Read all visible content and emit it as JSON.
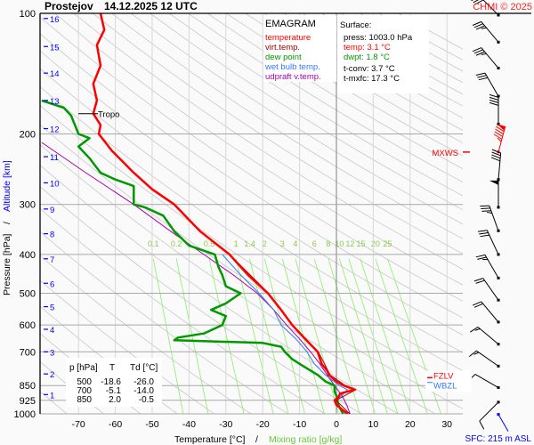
{
  "header": {
    "station": "Prostejov",
    "datetime": "14.12.2025 12 UTC",
    "copyright": "CHMI © 2025"
  },
  "legend": {
    "title": "EMAGRAM",
    "items": [
      {
        "label": "temperature",
        "color": "#ff0000"
      },
      {
        "label": "virt.temp.",
        "color": "#a00000"
      },
      {
        "label": "dew point",
        "color": "#009900"
      },
      {
        "label": "wet bulb temp.",
        "color": "#3377ff"
      },
      {
        "label": "udpraft v.temp.",
        "color": "#aa00aa"
      }
    ]
  },
  "surface": {
    "title": "Surface:",
    "press": "press: 1003.0 hPa",
    "temp": "temp: 3.1 °C",
    "dwpt": "dwpt: 1.8 °C",
    "tconv": "t-conv: 3.7 °C",
    "tmxfc": "t-mxfc: 17.3 °C"
  },
  "table": {
    "headers": [
      "p [hPa]",
      "T",
      "Td [°C]"
    ],
    "rows": [
      [
        "500",
        "-18.6",
        "-26.0"
      ],
      [
        "700",
        "-5.1",
        "-14.0"
      ],
      [
        "850",
        "2.0",
        "-0.5"
      ]
    ]
  },
  "annotations": {
    "tropo": "Tropo",
    "tropo_p": 178,
    "mxws": "MXWS",
    "mxws_p": 222,
    "fzlv": "FZLV",
    "fzlv_p": 812,
    "wbzl": "WBZL",
    "wbzl_p": 835,
    "sfc": "SFC: 215 m ASL"
  },
  "chart_data": {
    "type": "line",
    "title": "EMAGRAM",
    "xlabel": "Temperature [°C]",
    "xlabel2": "Mixing ratio [g/kg]",
    "xlabel_sep": "/",
    "ylabel": "Pressure [hPa]",
    "ylabel2": "Altitude [km]",
    "ylabel_sep": "/",
    "xlim": [
      -80,
      33
    ],
    "ylim": [
      1000,
      100
    ],
    "y_scale": "log",
    "x_ticks": [
      -70,
      -60,
      -50,
      -40,
      -30,
      -20,
      -10,
      0,
      10,
      20,
      30
    ],
    "p_ticks": [
      100,
      200,
      300,
      400,
      500,
      600,
      700,
      850,
      925,
      1000
    ],
    "altitude_ticks_km": [
      {
        "km": "1",
        "p": 895
      },
      {
        "km": "2",
        "p": 795
      },
      {
        "km": "3",
        "p": 700
      },
      {
        "km": "4",
        "p": 615
      },
      {
        "km": "5",
        "p": 540
      },
      {
        "km": "6",
        "p": 472
      },
      {
        "km": "7",
        "p": 410
      },
      {
        "km": "8",
        "p": 355
      },
      {
        "km": "9",
        "p": 308
      },
      {
        "km": "10",
        "p": 265
      },
      {
        "km": "11",
        "p": 228
      },
      {
        "km": "12",
        "p": 194
      },
      {
        "km": "13",
        "p": 165
      },
      {
        "km": "14",
        "p": 141
      },
      {
        "km": "15",
        "p": 121
      },
      {
        "km": "16",
        "p": 103
      }
    ],
    "mixing_ratio_lines": [
      "0.1",
      "0.2",
      "0.5",
      "1",
      "1.4",
      "2",
      "3",
      "4",
      "6",
      "8",
      "10",
      "12",
      "15",
      "20",
      "25"
    ],
    "mixing_ratio_label_p": 410,
    "colors": {
      "grid": "#b0b0b0",
      "adiabat": "#c8c8c8",
      "mixing": "#88ee66",
      "altitude": "#0000ff",
      "mixing_label": "#88cc44"
    },
    "series": [
      {
        "name": "temperature",
        "color": "#ff0000",
        "points": [
          [
            100,
            -64
          ],
          [
            110,
            -63
          ],
          [
            120,
            -65
          ],
          [
            135,
            -64
          ],
          [
            150,
            -66
          ],
          [
            165,
            -65
          ],
          [
            178,
            -66
          ],
          [
            190,
            -64
          ],
          [
            200,
            -64.5
          ],
          [
            220,
            -61
          ],
          [
            250,
            -55
          ],
          [
            275,
            -50
          ],
          [
            300,
            -44
          ],
          [
            350,
            -37
          ],
          [
            400,
            -29
          ],
          [
            450,
            -24
          ],
          [
            500,
            -18.6
          ],
          [
            550,
            -15
          ],
          [
            600,
            -12
          ],
          [
            650,
            -8.5
          ],
          [
            700,
            -5.1
          ],
          [
            750,
            -4
          ],
          [
            780,
            -2.5
          ],
          [
            800,
            -2
          ],
          [
            830,
            0
          ],
          [
            850,
            2.0
          ],
          [
            870,
            5
          ],
          [
            890,
            1
          ],
          [
            910,
            0.5
          ],
          [
            925,
            -0.5
          ],
          [
            950,
            0
          ],
          [
            975,
            1.5
          ],
          [
            1000,
            3.1
          ]
        ]
      },
      {
        "name": "virt.temp.",
        "color": "#a00000",
        "points": [
          [
            400,
            -29
          ],
          [
            500,
            -18.4
          ],
          [
            600,
            -11.8
          ],
          [
            700,
            -4.9
          ],
          [
            800,
            -1.7
          ],
          [
            850,
            2.4
          ],
          [
            870,
            5.3
          ],
          [
            925,
            -0.1
          ],
          [
            1000,
            3.6
          ]
        ]
      },
      {
        "name": "dew point",
        "color": "#009900",
        "points": [
          [
            165,
            -80
          ],
          [
            172,
            -74
          ],
          [
            180,
            -72
          ],
          [
            200,
            -70
          ],
          [
            205,
            -67
          ],
          [
            215,
            -70
          ],
          [
            230,
            -67
          ],
          [
            250,
            -64
          ],
          [
            260,
            -60
          ],
          [
            270,
            -55
          ],
          [
            300,
            -55
          ],
          [
            305,
            -52
          ],
          [
            320,
            -47
          ],
          [
            350,
            -44
          ],
          [
            380,
            -40
          ],
          [
            400,
            -33
          ],
          [
            430,
            -32
          ],
          [
            450,
            -31
          ],
          [
            480,
            -30
          ],
          [
            500,
            -26
          ],
          [
            530,
            -30
          ],
          [
            550,
            -34
          ],
          [
            570,
            -30
          ],
          [
            600,
            -31
          ],
          [
            630,
            -36
          ],
          [
            645,
            -43
          ],
          [
            655,
            -44
          ],
          [
            665,
            -20
          ],
          [
            680,
            -15
          ],
          [
            700,
            -14
          ],
          [
            730,
            -12
          ],
          [
            750,
            -10
          ],
          [
            780,
            -7
          ],
          [
            800,
            -5
          ],
          [
            830,
            -3
          ],
          [
            850,
            -0.5
          ],
          [
            880,
            -0.5
          ],
          [
            900,
            0
          ],
          [
            950,
            0.5
          ],
          [
            1000,
            1.8
          ]
        ]
      },
      {
        "name": "wet bulb temp.",
        "color": "#3377ff",
        "points": [
          [
            400,
            -31
          ],
          [
            450,
            -26
          ],
          [
            500,
            -21
          ],
          [
            550,
            -17
          ],
          [
            600,
            -15
          ],
          [
            650,
            -11
          ],
          [
            700,
            -8
          ],
          [
            750,
            -6
          ],
          [
            800,
            -3
          ],
          [
            850,
            0.8
          ],
          [
            870,
            3
          ],
          [
            900,
            1.5
          ],
          [
            925,
            -0.5
          ],
          [
            950,
            0.5
          ],
          [
            1000,
            2.5
          ]
        ]
      },
      {
        "name": "udpraft v.temp.",
        "color": "#aa00aa",
        "points": [
          [
            210,
            -80
          ],
          [
            250,
            -68
          ],
          [
            300,
            -55
          ],
          [
            350,
            -45
          ],
          [
            400,
            -36
          ],
          [
            450,
            -28
          ],
          [
            500,
            -21.5
          ],
          [
            550,
            -17
          ],
          [
            600,
            -13.5
          ],
          [
            650,
            -10
          ],
          [
            700,
            -7
          ],
          [
            750,
            -4.5
          ],
          [
            800,
            -2.5
          ],
          [
            850,
            -0.5
          ],
          [
            900,
            1.5
          ],
          [
            950,
            2.8
          ],
          [
            1000,
            3.7
          ]
        ]
      }
    ],
    "wind": [
      {
        "p": 101,
        "dir": 315,
        "kt": 30
      },
      {
        "p": 118,
        "dir": 320,
        "kt": 35
      },
      {
        "p": 137,
        "dir": 320,
        "kt": 35
      },
      {
        "p": 161,
        "dir": 330,
        "kt": 30
      },
      {
        "p": 189,
        "dir": 360,
        "kt": 40
      },
      {
        "p": 222,
        "dir": 15,
        "kt": 95,
        "max": true
      },
      {
        "p": 260,
        "dir": 5,
        "kt": 40
      },
      {
        "p": 305,
        "dir": 360,
        "kt": 50
      },
      {
        "p": 349,
        "dir": 340,
        "kt": 35
      },
      {
        "p": 400,
        "dir": 335,
        "kt": 30
      },
      {
        "p": 458,
        "dir": 330,
        "kt": 25
      },
      {
        "p": 520,
        "dir": 325,
        "kt": 20
      },
      {
        "p": 590,
        "dir": 320,
        "kt": 20
      },
      {
        "p": 670,
        "dir": 310,
        "kt": 15
      },
      {
        "p": 760,
        "dir": 305,
        "kt": 15
      },
      {
        "p": 860,
        "dir": 300,
        "kt": 10
      },
      {
        "p": 935,
        "dir": 225,
        "kt": 10
      },
      {
        "p": 1003,
        "dir": 150,
        "kt": 0,
        "surface": true
      }
    ]
  }
}
